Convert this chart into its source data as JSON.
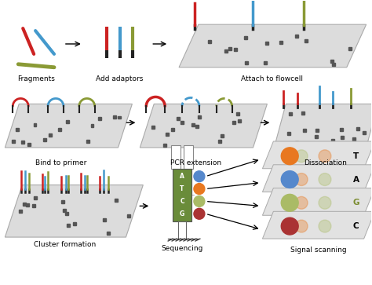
{
  "bg": "#ffffff",
  "colors": {
    "red": "#cc2222",
    "blue": "#4499cc",
    "green": "#8a9a35",
    "orange": "#e87820",
    "dark_red": "#aa3333",
    "light_green": "#aabb66",
    "blue_dot": "#5588cc",
    "seq_green": "#6a8c3a",
    "panel": "#e0e0e0",
    "panel_edge": "#aaaaaa",
    "dot_dark": "#333333"
  },
  "labels": {
    "fragments": "Fragments",
    "add_adaptors": "Add adaptors",
    "attach_flowcell": "Attach to flowcell",
    "bind_primer": "Bind to primer",
    "pcr_extension": "PCR extension",
    "dissociation": "Dissociation",
    "cluster_formation": "Cluster formation",
    "sequencing": "Sequencing",
    "signal_scanning": "Signal scanning"
  },
  "signal_labels": [
    "T",
    "A",
    "G",
    "C"
  ]
}
